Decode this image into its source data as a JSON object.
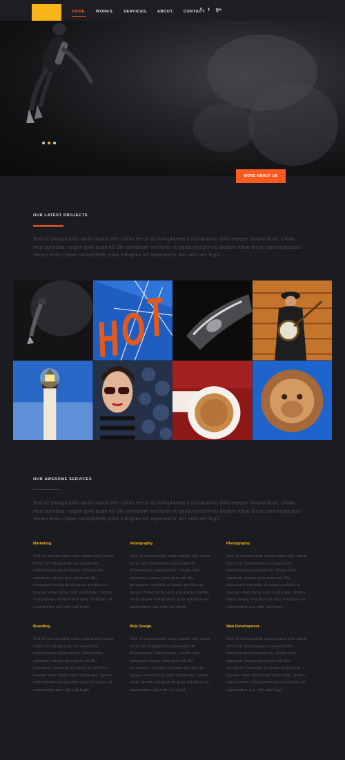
{
  "header": {
    "nav": [
      {
        "label": "HOME."
      },
      {
        "label": "WORKS."
      },
      {
        "label": "SERVICES."
      },
      {
        "label": "ABOUT."
      },
      {
        "label": "CONTACT."
      }
    ],
    "social": [
      {
        "icon": "facebook-icon",
        "glyph": "f"
      },
      {
        "icon": "twitter-icon",
        "glyph": "t"
      },
      {
        "icon": "google-plus-icon",
        "glyph": "g+"
      }
    ]
  },
  "hero": {
    "more_button": "MORE ABOUT US"
  },
  "projects": {
    "title": "OUR LATEST PROJECTS",
    "intro": "Sed ut perspiciatis unde omnis iste natus error sit voluptatem accusantium doloremque laudantium, totam rem aperiam, eaque ipsa quae ab illo inventore veritatis et quasi architecto beatae vitae dicta sunt explicabo. Nemo enim ipsam voluptatem quia voluptas sit aspernatur aut odit aut fugit."
  },
  "services": {
    "title": "OUR AWESOME SERVICES",
    "intro": "Sed ut perspiciatis unde omnis iste natus error sit voluptatem accusantium doloremque laudantium, totam rem aperiam, eaque ipsa quae ab illo inventore veritatis et quasi architecto beatae vitae dicta sunt explicabo. Nemo enim ipsam voluptatem quia voluptas sit aspernatur aut odit aut fugit.",
    "items": [
      {
        "title": "Marketing.",
        "text": "Sed ut perspiciatis unde omnis iste natus error sit voluptatem accusantium doloremque laudantium, totam rem aperiam, eaque ipsa quae ab illo inventore veritatis et quasi architecto beatae vitae dicta sunt explicabo. Nemo enim ipsam voluptatem quia voluptas sit aspernatur aut odit aut fugit."
      },
      {
        "title": "Videography.",
        "text": "Sed ut perspiciatis unde omnis iste natus error sit voluptatem accusantium doloremque laudantium, totam rem aperiam, eaque ipsa quae ab illo inventore veritatis et quasi architecto beatae vitae dicta sunt explicabo. Nemo enim ipsam voluptatem quia voluptas sit aspernatur aut odit aut fugit."
      },
      {
        "title": "Photography.",
        "text": "Sed ut perspiciatis unde omnis iste natus error sit voluptatem accusantium doloremque laudantium, totam rem aperiam, eaque ipsa quae ab illo inventore veritatis et quasi architecto beatae vitae dicta sunt explicabo. Nemo enim ipsam voluptatem quia voluptas sit aspernatur aut odit aut fugit."
      },
      {
        "title": "Branding.",
        "text": "Sed ut perspiciatis unde omnis iste natus error sit voluptatem accusantium doloremque laudantium, totam rem aperiam, eaque ipsa quae ab illo inventore veritatis et quasi architecto beatae vitae dicta sunt explicabo. Nemo enim ipsam voluptatem quia voluptas sit aspernatur aut odit aut fugit."
      },
      {
        "title": "Web Design.",
        "text": "Sed ut perspiciatis unde omnis iste natus error sit voluptatem accusantium doloremque laudantium, totam rem aperiam, eaque ipsa quae ab illo inventore veritatis et quasi architecto beatae vitae dicta sunt explicabo. Nemo enim ipsam voluptatem quia voluptas sit aspernatur aut odit aut fugit."
      },
      {
        "title": "Web Development.",
        "text": "Sed ut perspiciatis unde omnis iste natus error sit voluptatem accusantium doloremque laudantium, totam rem aperiam, eaque ipsa quae ab illo inventore veritatis et quasi architecto beatae vitae dicta sunt explicabo. Nemo enim ipsam voluptatem quia voluptas sit aspernatur aut odit aut fugit."
      }
    ]
  },
  "colors": {
    "accent": "#ff5a1f",
    "logo": "#f7b519",
    "background": "#1b1c21"
  }
}
